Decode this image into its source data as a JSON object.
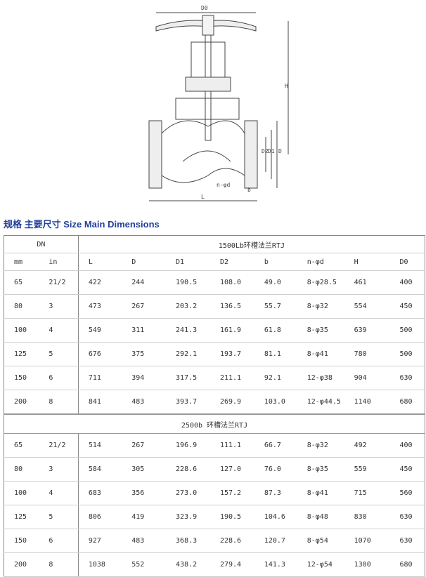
{
  "drawing_labels": {
    "d0": "D0",
    "h": "H",
    "d2": "D2",
    "d1": "D1",
    "d": "D",
    "nd": "n-φd",
    "b": "b",
    "l": "L"
  },
  "title": "规格  主要尺寸 Size Main Dimensions",
  "table": {
    "dn_header": "DN",
    "section1": "1500Lb环槽法兰RTJ",
    "section2": "2500b 环槽法兰RTJ",
    "columns": [
      "mm",
      "in",
      "L",
      "D",
      "D1",
      "D2",
      "b",
      "n-φd",
      "H",
      "D0"
    ],
    "rows1": [
      [
        "65",
        "21/2",
        "422",
        "244",
        "190.5",
        "108.0",
        "49.0",
        "8-φ28.5",
        "461",
        "400"
      ],
      [
        "80",
        "3",
        "473",
        "267",
        "203.2",
        "136.5",
        "55.7",
        "8-φ32",
        "554",
        "450"
      ],
      [
        "100",
        "4",
        "549",
        "311",
        "241.3",
        "161.9",
        "61.8",
        "8-φ35",
        "639",
        "500"
      ],
      [
        "125",
        "5",
        "676",
        "375",
        "292.1",
        "193.7",
        "81.1",
        "8-φ41",
        "780",
        "500"
      ],
      [
        "150",
        "6",
        "711",
        "394",
        "317.5",
        "211.1",
        "92.1",
        "12-φ38",
        "904",
        "630"
      ],
      [
        "200",
        "8",
        "841",
        "483",
        "393.7",
        "269.9",
        "103.0",
        "12-φ44.5",
        "1140",
        "680"
      ]
    ],
    "rows2": [
      [
        "65",
        "21/2",
        "514",
        "267",
        "196.9",
        "111.1",
        "66.7",
        "8-φ32",
        "492",
        "400"
      ],
      [
        "80",
        "3",
        "584",
        "305",
        "228.6",
        "127.0",
        "76.0",
        "8-φ35",
        "559",
        "450"
      ],
      [
        "100",
        "4",
        "683",
        "356",
        "273.0",
        "157.2",
        "87.3",
        "8-φ41",
        "715",
        "560"
      ],
      [
        "125",
        "5",
        "806",
        "419",
        "323.9",
        "190.5",
        "104.6",
        "8-φ48",
        "830",
        "630"
      ],
      [
        "150",
        "6",
        "927",
        "483",
        "368.3",
        "228.6",
        "120.7",
        "8-φ54",
        "1070",
        "630"
      ],
      [
        "200",
        "8",
        "1038",
        "552",
        "438.2",
        "279.4",
        "141.3",
        "12-φ54",
        "1300",
        "680"
      ]
    ]
  }
}
